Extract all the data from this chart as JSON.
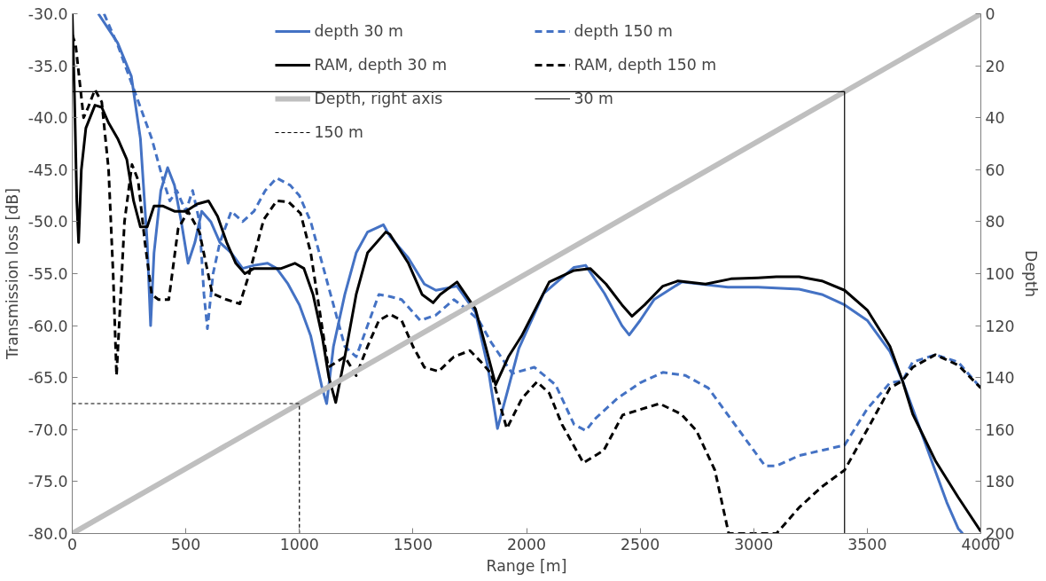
{
  "chart_data": {
    "type": "line",
    "xlabel": "Range [m]",
    "ylabel": "Transmission loss [dB]",
    "y2label": "Depth",
    "xlim": [
      0,
      4000
    ],
    "xticks": [
      0,
      500,
      1000,
      1500,
      2000,
      2500,
      3000,
      3500,
      4000
    ],
    "ylim": [
      -80,
      -30
    ],
    "yticks": [
      {
        "value": -80,
        "label": "-80.0"
      },
      {
        "value": -75,
        "label": "-75.0"
      },
      {
        "value": -70,
        "label": "-70.0"
      },
      {
        "value": -65,
        "label": "-65.0"
      },
      {
        "value": -60,
        "label": "-60.0"
      },
      {
        "value": -55,
        "label": "-55.0"
      },
      {
        "value": -50,
        "label": "-50.0"
      },
      {
        "value": -45,
        "label": "-45.0"
      },
      {
        "value": -40,
        "label": "-40.0"
      },
      {
        "value": -35,
        "label": "-35.0"
      },
      {
        "value": -30,
        "label": "-30.0"
      }
    ],
    "y2lim": [
      200,
      0
    ],
    "y2ticks": [
      0,
      20,
      40,
      60,
      80,
      100,
      120,
      140,
      160,
      180,
      200
    ],
    "grid": false,
    "legend": "top",
    "marker": "none",
    "series": [
      {
        "name": "depth 30 m",
        "color": "#4472c4",
        "line_style": "solid",
        "x": [
          115,
          200,
          260,
          300,
          330,
          345,
          360,
          390,
          420,
          450,
          480,
          510,
          540,
          570,
          610,
          650,
          700,
          750,
          800,
          860,
          900,
          950,
          1000,
          1050,
          1100,
          1120,
          1150,
          1200,
          1250,
          1300,
          1370,
          1398,
          1480,
          1550,
          1601,
          1694,
          1775,
          1830,
          1872,
          1920,
          1966,
          2075,
          2209,
          2260,
          2343,
          2420,
          2452,
          2500,
          2561,
          2683,
          2886,
          3019,
          3200,
          3300,
          3400,
          3500,
          3600,
          3655,
          3700,
          3750,
          3800,
          3850,
          3900,
          3920
        ],
        "values": [
          -30,
          -32.8,
          -36,
          -42,
          -52,
          -60,
          -53,
          -47,
          -44.8,
          -46.5,
          -50,
          -54,
          -52,
          -49,
          -50,
          -52,
          -53,
          -54.5,
          -54.2,
          -54,
          -54.5,
          -56,
          -58,
          -61,
          -66,
          -67.5,
          -62,
          -57,
          -53,
          -51,
          -50.3,
          -51.4,
          -53.5,
          -56,
          -56.6,
          -56.2,
          -58.7,
          -64,
          -69.9,
          -66,
          -62.2,
          -56.9,
          -54.4,
          -54.2,
          -56.9,
          -60,
          -60.9,
          -59.5,
          -57.5,
          -55.8,
          -56.3,
          -56.3,
          -56.5,
          -57,
          -58,
          -59.5,
          -62.5,
          -65.3,
          -68,
          -71,
          -74,
          -77,
          -79.5,
          -80
        ]
      },
      {
        "name": "depth 150 m",
        "color": "#4472c4",
        "line_style": "dashed",
        "x": [
          140,
          200,
          250,
          300,
          350,
          400,
          430,
          460,
          500,
          530,
          560,
          580,
          595,
          620,
          650,
          700,
          750,
          800,
          850,
          900,
          960,
          1000,
          1050,
          1100,
          1150,
          1200,
          1250,
          1300,
          1350,
          1398,
          1450,
          1532,
          1600,
          1680,
          1735,
          1790,
          1844,
          1937,
          2034,
          2128,
          2209,
          2261,
          2300,
          2400,
          2500,
          2600,
          2700,
          2800,
          2900,
          3000,
          3050,
          3100,
          3200,
          3300,
          3400,
          3500,
          3600,
          3655,
          3700,
          3800,
          3900,
          4000
        ],
        "values": [
          -30,
          -33,
          -36,
          -39,
          -42,
          -46,
          -48,
          -47,
          -49,
          -47,
          -50,
          -57,
          -60.3,
          -55,
          -52,
          -49,
          -50,
          -49,
          -47,
          -45.8,
          -46.5,
          -47.5,
          -50,
          -54,
          -58,
          -62,
          -63,
          -60,
          -57,
          -57.2,
          -57.5,
          -59.5,
          -59,
          -57.5,
          -58.4,
          -59.5,
          -61.6,
          -64.6,
          -64,
          -65.7,
          -69.5,
          -70.1,
          -69,
          -67,
          -65.5,
          -64.5,
          -64.8,
          -66,
          -69,
          -72,
          -73.5,
          -73.5,
          -72.5,
          -72,
          -71.5,
          -68,
          -65.5,
          -65.3,
          -63.5,
          -62.8,
          -63.5,
          -66
        ]
      },
      {
        "name": "RAM, depth 30 m",
        "color": "#000000",
        "line_style": "solid",
        "x": [
          0,
          10,
          20,
          28,
          40,
          60,
          100,
          130,
          160,
          200,
          240,
          270,
          300,
          330,
          360,
          400,
          450,
          500,
          550,
          600,
          640,
          680,
          720,
          760,
          800,
          860,
          920,
          980,
          1020,
          1060,
          1100,
          1130,
          1160,
          1200,
          1250,
          1300,
          1380,
          1398,
          1480,
          1540,
          1589,
          1620,
          1694,
          1775,
          1820,
          1864,
          1920,
          1978,
          2100,
          2209,
          2280,
          2350,
          2420,
          2464,
          2520,
          2600,
          2667,
          2788,
          2900,
          3019,
          3100,
          3200,
          3300,
          3400,
          3500,
          3600,
          3655,
          3700,
          3800,
          3900,
          4000
        ],
        "values": [
          -30,
          -38,
          -48,
          -52,
          -45,
          -41,
          -38.8,
          -39,
          -40.5,
          -42,
          -44,
          -48,
          -50.5,
          -50.5,
          -48.5,
          -48.5,
          -49,
          -49,
          -48.3,
          -48,
          -49.5,
          -52,
          -54,
          -55,
          -54.5,
          -54.5,
          -54.5,
          -54,
          -54.5,
          -57,
          -61,
          -65,
          -67.4,
          -63,
          -57,
          -53,
          -51,
          -51.2,
          -54,
          -57,
          -57.8,
          -57,
          -55.8,
          -58.4,
          -62,
          -65.7,
          -63,
          -61,
          -55.8,
          -54.7,
          -54.5,
          -56,
          -58,
          -59.1,
          -58,
          -56.2,
          -55.7,
          -56,
          -55.5,
          -55.4,
          -55.3,
          -55.3,
          -55.7,
          -56.6,
          -58.5,
          -62,
          -65.3,
          -68.5,
          -73,
          -76.5,
          -79.8
        ]
      },
      {
        "name": "RAM, depth 150 m",
        "color": "#000000",
        "line_style": "dashed",
        "x": [
          0,
          15,
          30,
          50,
          70,
          100,
          130,
          160,
          180,
          195,
          230,
          263,
          290,
          320,
          350,
          380,
          425,
          466,
          510,
          560,
          616,
          680,
          738,
          778,
          843,
          900,
          952,
          1005,
          1050,
          1127,
          1200,
          1250,
          1300,
          1350,
          1398,
          1450,
          1500,
          1550,
          1613,
          1680,
          1751,
          1800,
          1844,
          1913,
          1980,
          2046,
          2100,
          2156,
          2250,
          2340,
          2423,
          2585,
          2680,
          2748,
          2829,
          2890,
          3100,
          3200,
          3300,
          3400,
          3500,
          3600,
          3655,
          3700,
          3800,
          3900,
          4000
        ],
        "values": [
          -32,
          -33,
          -36,
          -40,
          -39,
          -37.3,
          -38.5,
          -45,
          -55,
          -64.8,
          -50,
          -44.5,
          -46,
          -52,
          -57,
          -57.5,
          -57.5,
          -50.7,
          -49,
          -51,
          -56.9,
          -57.5,
          -57.9,
          -55.1,
          -49.8,
          -48,
          -48.1,
          -49.2,
          -53,
          -64,
          -63,
          -64.8,
          -62,
          -59.5,
          -58.9,
          -59.5,
          -62,
          -64,
          -64.4,
          -63,
          -62.4,
          -63.5,
          -64.6,
          -69.9,
          -67,
          -65.4,
          -66.5,
          -69.5,
          -73.2,
          -72,
          -68.6,
          -67.5,
          -68.5,
          -70.1,
          -73.9,
          -80,
          -80,
          -77.5,
          -75.5,
          -73.9,
          -70,
          -66,
          -65.3,
          -64,
          -62.8,
          -63.8,
          -66
        ]
      },
      {
        "name": "Depth, right axis",
        "color": "#bfbfbf",
        "line_style": "solid",
        "axis": "y2",
        "x": [
          0,
          4000
        ],
        "values": [
          200,
          0
        ]
      },
      {
        "name": "30 m",
        "color": "#000000",
        "line_style": "solid",
        "axis": "y2",
        "x": [
          0,
          3400,
          3400
        ],
        "values": [
          30,
          30,
          200
        ]
      },
      {
        "name": "150 m",
        "color": "#000000",
        "line_style": "dashed",
        "axis": "y2",
        "x": [
          0,
          1000,
          1000
        ],
        "values": [
          150,
          150,
          200
        ]
      }
    ]
  }
}
